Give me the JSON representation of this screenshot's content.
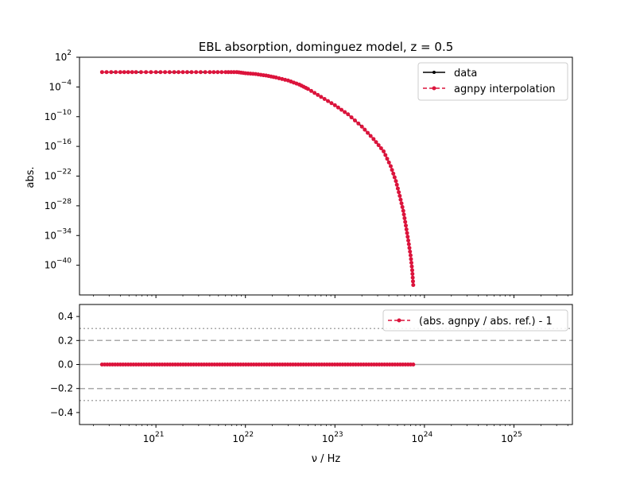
{
  "chart_data": [
    {
      "type": "line",
      "title": "EBL absorption, dominguez model, z = 0.5",
      "xlabel": "",
      "ylabel": "abs.",
      "xscale": "log",
      "yscale": "log",
      "xlim": [
        1.4e+20,
        4.5e+25
      ],
      "ylim": [
        1e-46,
        100.0
      ],
      "yticks": [
        "10^2",
        "10^-4",
        "10^-10",
        "10^-16",
        "10^-22",
        "10^-28",
        "10^-34",
        "10^-40"
      ],
      "legend": {
        "position": "top-right",
        "entries": [
          "data",
          "agnpy interpolation"
        ]
      },
      "series": [
        {
          "name": "data",
          "color": "#000000",
          "style": "solid",
          "x": [
            2.5e+20,
            4e+20,
            6e+20,
            1e+21,
            1.6e+21,
            2.5e+21,
            4e+21,
            6e+21,
            8e+21,
            1e+22,
            1.3e+22,
            1.7e+22,
            2.2e+22,
            3e+22,
            4e+22,
            5e+22,
            7e+22,
            1e+23,
            1.4e+23,
            2e+23,
            2.7e+23,
            3.5e+23,
            4.2e+23,
            4.8e+23,
            5.3e+23,
            5.8e+23,
            6.2e+23,
            6.6e+23,
            7e+23,
            7.3e+23,
            7.5e+23
          ],
          "y": [
            0.1,
            0.1,
            0.1,
            0.1,
            0.1,
            0.1,
            0.1,
            0.1,
            0.1,
            0.06,
            0.04,
            0.02,
            0.008,
            0.002,
            0.0003,
            4e-05,
            1e-06,
            2e-08,
            3e-10,
            1e-12,
            3e-15,
            1e-17,
            1e-20,
            1e-23,
            1e-26,
            1e-29,
            1e-32,
            1e-35,
            1e-38,
            1e-41,
            1e-44
          ]
        },
        {
          "name": "agnpy interpolation",
          "color": "#dc143c",
          "style": "dashed",
          "marker": "circle",
          "x": [
            2.5e+20,
            4e+20,
            6e+20,
            1e+21,
            1.6e+21,
            2.5e+21,
            4e+21,
            6e+21,
            8e+21,
            1e+22,
            1.3e+22,
            1.7e+22,
            2.2e+22,
            3e+22,
            4e+22,
            5e+22,
            7e+22,
            1e+23,
            1.4e+23,
            2e+23,
            2.7e+23,
            3.5e+23,
            4.2e+23,
            4.8e+23,
            5.3e+23,
            5.8e+23,
            6.2e+23,
            6.6e+23,
            7e+23,
            7.3e+23,
            7.5e+23
          ],
          "y": [
            0.1,
            0.1,
            0.1,
            0.1,
            0.1,
            0.1,
            0.1,
            0.1,
            0.1,
            0.06,
            0.04,
            0.02,
            0.008,
            0.002,
            0.0003,
            4e-05,
            1e-06,
            2e-08,
            3e-10,
            1e-12,
            3e-15,
            1e-17,
            1e-20,
            1e-23,
            1e-26,
            1e-29,
            1e-32,
            1e-35,
            1e-38,
            1e-41,
            1e-44
          ]
        }
      ]
    },
    {
      "type": "line",
      "title": "",
      "xlabel": "ν / Hz",
      "ylabel": "",
      "xscale": "log",
      "yscale": "linear",
      "xlim": [
        1.4e+20,
        4.5e+25
      ],
      "ylim": [
        -0.5,
        0.5
      ],
      "xticks": [
        "10^21",
        "10^22",
        "10^23",
        "10^24",
        "10^25"
      ],
      "yticks": [
        "0.4",
        "0.2",
        "0.0",
        "−0.2",
        "−0.4"
      ],
      "legend": {
        "position": "top-right",
        "entries": [
          "(abs. agnpy / abs. ref.) - 1"
        ]
      },
      "reference_lines": [
        {
          "y": 0.0,
          "style": "solid",
          "color": "#aaaaaa"
        },
        {
          "y": 0.2,
          "style": "dashed",
          "color": "#aaaaaa"
        },
        {
          "y": -0.2,
          "style": "dashed",
          "color": "#aaaaaa"
        },
        {
          "y": 0.3,
          "style": "dotted",
          "color": "#aaaaaa"
        },
        {
          "y": -0.3,
          "style": "dotted",
          "color": "#aaaaaa"
        }
      ],
      "series": [
        {
          "name": "(abs. agnpy / abs. ref.) - 1",
          "color": "#dc143c",
          "style": "dashed",
          "marker": "circle",
          "x_range": [
            2.5e+20,
            7.5e+23
          ],
          "y_constant": 0.0
        }
      ]
    }
  ]
}
